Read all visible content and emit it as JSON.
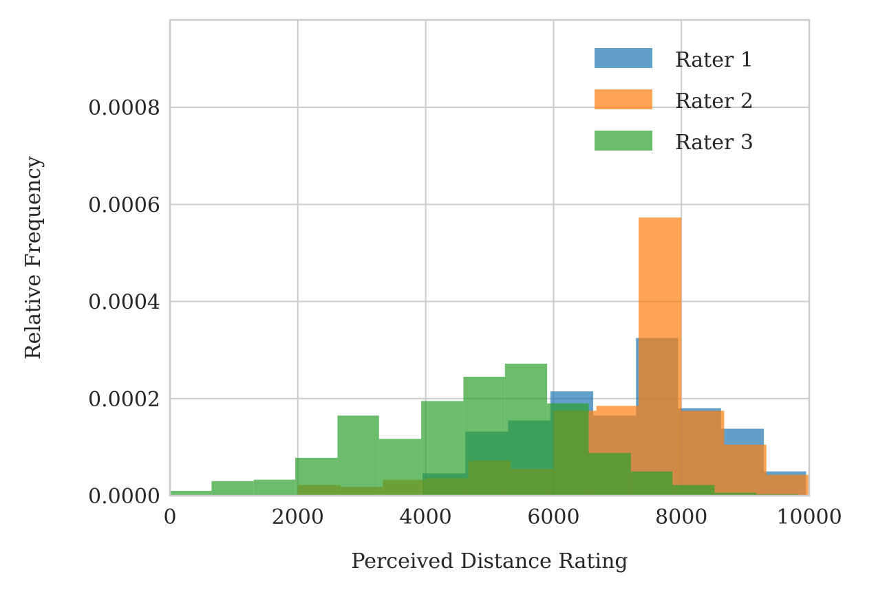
{
  "chart_data": {
    "type": "histogram",
    "title": "",
    "xlabel": "Perceived Distance Rating",
    "ylabel": "Relative Frequency",
    "xlim": [
      0,
      10000
    ],
    "ylim": [
      0,
      0.00098
    ],
    "xticks": [
      0,
      2000,
      4000,
      6000,
      8000,
      10000
    ],
    "xtick_labels": [
      "0",
      "2000",
      "4000",
      "6000",
      "8000",
      "10000"
    ],
    "yticks": [
      0,
      0.0002,
      0.0004,
      0.0006,
      0.0008
    ],
    "ytick_labels": [
      "0.0000",
      "0.0002",
      "0.0004",
      "0.0006",
      "0.0008"
    ],
    "grid": true,
    "legend_position": "top-right",
    "series": [
      {
        "name": "Rater 1",
        "color": "#1f77b4",
        "opacity": 0.7,
        "bins": [
          {
            "x0": 3950,
            "x1": 4620,
            "value": 4.6e-05
          },
          {
            "x0": 4620,
            "x1": 5290,
            "value": 0.000132
          },
          {
            "x0": 5290,
            "x1": 5950,
            "value": 0.000155
          },
          {
            "x0": 5950,
            "x1": 6620,
            "value": 0.000215
          },
          {
            "x0": 6620,
            "x1": 7290,
            "value": 0.000165
          },
          {
            "x0": 7290,
            "x1": 7950,
            "value": 0.000325
          },
          {
            "x0": 7950,
            "x1": 8620,
            "value": 0.00018
          },
          {
            "x0": 8620,
            "x1": 9290,
            "value": 0.000138
          },
          {
            "x0": 9290,
            "x1": 9950,
            "value": 5e-05
          }
        ]
      },
      {
        "name": "Rater 2",
        "color": "#ff7f0e",
        "opacity": 0.7,
        "bins": [
          {
            "x0": 2000,
            "x1": 2670,
            "value": 2.2e-05
          },
          {
            "x0": 2670,
            "x1": 3330,
            "value": 1.8e-05
          },
          {
            "x0": 3330,
            "x1": 4000,
            "value": 3.3e-05
          },
          {
            "x0": 4000,
            "x1": 4670,
            "value": 3.6e-05
          },
          {
            "x0": 4670,
            "x1": 5330,
            "value": 7.2e-05
          },
          {
            "x0": 5330,
            "x1": 6000,
            "value": 5.5e-05
          },
          {
            "x0": 6000,
            "x1": 6670,
            "value": 0.000175
          },
          {
            "x0": 6670,
            "x1": 7330,
            "value": 0.000185
          },
          {
            "x0": 7330,
            "x1": 8000,
            "value": 0.000573
          },
          {
            "x0": 8000,
            "x1": 8670,
            "value": 0.000175
          },
          {
            "x0": 8670,
            "x1": 9330,
            "value": 0.000105
          },
          {
            "x0": 9330,
            "x1": 10000,
            "value": 4.3e-05
          }
        ]
      },
      {
        "name": "Rater 3",
        "color": "#2ca02c",
        "opacity": 0.7,
        "bins": [
          {
            "x0": 0,
            "x1": 650,
            "value": 1e-05
          },
          {
            "x0": 650,
            "x1": 1310,
            "value": 3e-05
          },
          {
            "x0": 1310,
            "x1": 1960,
            "value": 3.3e-05
          },
          {
            "x0": 1960,
            "x1": 2620,
            "value": 7.8e-05
          },
          {
            "x0": 2620,
            "x1": 3270,
            "value": 0.000165
          },
          {
            "x0": 3270,
            "x1": 3930,
            "value": 0.000117
          },
          {
            "x0": 3930,
            "x1": 4590,
            "value": 0.000195
          },
          {
            "x0": 4590,
            "x1": 5240,
            "value": 0.000245
          },
          {
            "x0": 5240,
            "x1": 5900,
            "value": 0.000272
          },
          {
            "x0": 5900,
            "x1": 6550,
            "value": 0.00019
          },
          {
            "x0": 6550,
            "x1": 7210,
            "value": 8.8e-05
          },
          {
            "x0": 7210,
            "x1": 7860,
            "value": 5e-05
          },
          {
            "x0": 7860,
            "x1": 8520,
            "value": 2.2e-05
          },
          {
            "x0": 8520,
            "x1": 9170,
            "value": 6e-06
          },
          {
            "x0": 9170,
            "x1": 9830,
            "value": 3e-06
          }
        ]
      }
    ]
  }
}
